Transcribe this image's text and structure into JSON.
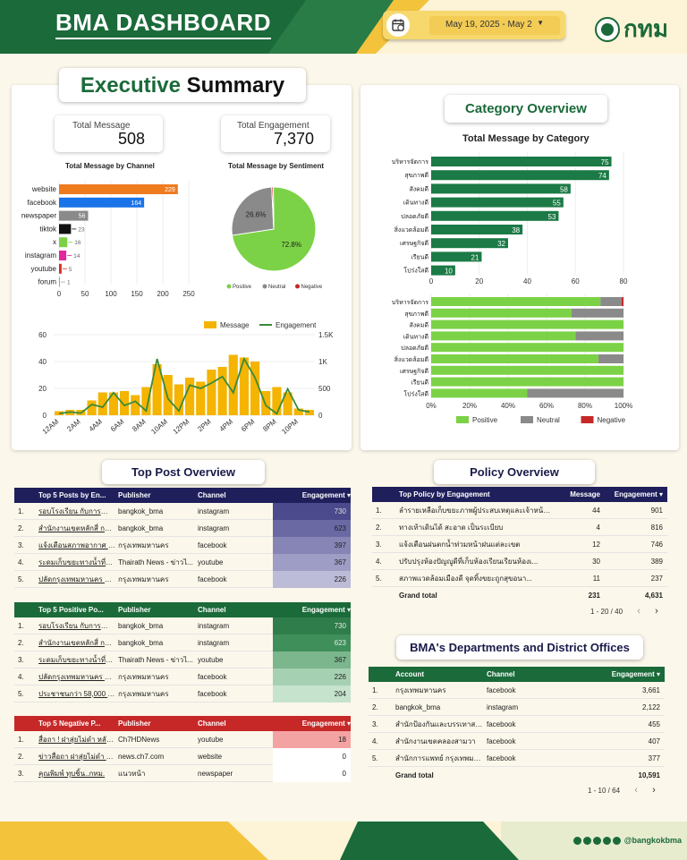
{
  "header": {
    "title": "BMA DASHBOARD",
    "date_range": "May 19, 2025 - May 2",
    "logo_text": "กทม"
  },
  "executive": {
    "title_part1": "Executive",
    "title_part2": "Summary"
  },
  "kpis": {
    "total_message_label": "Total Message",
    "total_message_value": "508",
    "total_engagement_label": "Total Engagement",
    "total_engagement_value": "7,370"
  },
  "channel_chart": {
    "title": "Total Message by Channel"
  },
  "sentiment_chart": {
    "title": "Total Message by Sentiment"
  },
  "category": {
    "title": "Category Overview",
    "subtitle": "Total Message by Category"
  },
  "chart_data": [
    {
      "type": "bar",
      "title": "Total Message by Channel",
      "categories": [
        "website",
        "facebook",
        "newspaper",
        "tiktok",
        "x",
        "instagram",
        "youtube",
        "forum"
      ],
      "values": [
        229,
        164,
        56,
        23,
        16,
        14,
        5,
        1
      ],
      "colors": [
        "#ef7b1f",
        "#1a73e8",
        "#8a8a8a",
        "#111111",
        "#7cd246",
        "#e2269f",
        "#d93025",
        "#9aa0c8"
      ],
      "xticks": [
        "0",
        "50",
        "100",
        "150",
        "200",
        "250"
      ],
      "xlim": [
        0,
        250
      ]
    },
    {
      "type": "pie",
      "title": "Total Message by Sentiment",
      "labels": [
        "Positive",
        "Neutral",
        "Negative"
      ],
      "values": [
        72.8,
        26.6,
        0.6
      ],
      "colors": [
        "#7cd246",
        "#8a8a8a",
        "#c62828"
      ],
      "slice_labels": [
        "72.8%",
        "26.6%",
        ""
      ]
    },
    {
      "type": "bar",
      "title": "Total Message by Category",
      "categories": [
        "บริหารจัดการ",
        "สุขภาพดี",
        "สังคมดี",
        "เดินทางดี",
        "ปลอดภัยดี",
        "สิ่งแวดล้อมดี",
        "เศรษฐกิจดี",
        "เรียนดี",
        "โปร่งใสดี"
      ],
      "values": [
        75,
        74,
        58,
        55,
        53,
        38,
        32,
        21,
        10
      ],
      "xticks": [
        "0",
        "20",
        "40",
        "60",
        "80"
      ],
      "xlim": [
        0,
        80
      ],
      "color": "#1b7a45"
    },
    {
      "type": "bar",
      "stacked": true,
      "categories": [
        "บริหารจัดการ",
        "สุขภาพดี",
        "สังคมดี",
        "เดินทางดี",
        "ปลอดภัยดี",
        "สิ่งแวดล้อมดี",
        "เศรษฐกิจดี",
        "เรียนดี",
        "โปร่งใสดี"
      ],
      "series": [
        {
          "name": "Positive",
          "values": [
            0.88,
            0.73,
            1,
            0.75,
            1,
            0.87,
            1,
            1,
            0.5
          ],
          "color": "#7cd246"
        },
        {
          "name": "Neutral",
          "values": [
            0.11,
            0.27,
            0,
            0.25,
            0,
            0.13,
            0,
            0,
            0.5
          ],
          "color": "#8a8a8a"
        },
        {
          "name": "Negative",
          "values": [
            0.01,
            0,
            0,
            0,
            0,
            0,
            0,
            0,
            0
          ],
          "color": "#c62828"
        }
      ],
      "xticks": [
        "0%",
        "20%",
        "40%",
        "60%",
        "80%",
        "100%"
      ]
    },
    {
      "type": "bar+line",
      "x": [
        "12AM",
        "1AM",
        "2AM",
        "3AM",
        "4AM",
        "5AM",
        "6AM",
        "7AM",
        "8AM",
        "9AM",
        "10AM",
        "11AM",
        "12PM",
        "1PM",
        "2PM",
        "3PM",
        "4PM",
        "5PM",
        "6PM",
        "7PM",
        "8PM",
        "9PM",
        "10PM",
        "11PM"
      ],
      "xticks": [
        "12AM",
        "2AM",
        "4AM",
        "6AM",
        "8AM",
        "10AM",
        "12PM",
        "2PM",
        "4PM",
        "6PM",
        "8PM",
        "10PM"
      ],
      "series": [
        {
          "name": "Message",
          "type": "bar",
          "values": [
            3,
            4,
            4,
            11,
            17,
            17,
            18,
            15,
            21,
            38,
            30,
            23,
            28,
            25,
            34,
            36,
            45,
            43,
            40,
            18,
            21,
            17,
            5,
            4
          ],
          "color": "#f4b400"
        },
        {
          "name": "Engagement",
          "type": "line",
          "values": [
            30,
            60,
            40,
            200,
            150,
            420,
            180,
            260,
            80,
            1050,
            310,
            80,
            560,
            500,
            600,
            720,
            420,
            1050,
            700,
            180,
            30,
            490,
            100,
            60
          ],
          "color": "#3a8a3a"
        }
      ],
      "ylim_left": [
        0,
        60
      ],
      "yticks_left": [
        "0",
        "20",
        "40",
        "60"
      ],
      "ylim_right": [
        0,
        1500
      ],
      "yticks_right": [
        "0",
        "500",
        "1K",
        "1.5K"
      ]
    }
  ],
  "legends": {
    "positive": "Positive",
    "neutral": "Neutral",
    "negative": "Negative",
    "message": "Message",
    "engagement": "Engagement"
  },
  "top_post": {
    "title": "Top Post Overview",
    "top5": {
      "headers": [
        "",
        "Top 5 Posts by En...",
        "Publisher",
        "Channel",
        "Engagement ▾"
      ],
      "rows": [
        [
          "1.",
          "รอบโรงเรียน กับการกำจัดขยะ...",
          "bangkok_bma",
          "instagram",
          "730"
        ],
        [
          "2.",
          "สำนักงานเขตหลักสี่ การกำจัดขยะ...",
          "bangkok_bma",
          "instagram",
          "623"
        ],
        [
          "3.",
          "แจ้งเตือนสภาพอากาศ ..ครั้ง...",
          "กรุงเทพมหานคร",
          "facebook",
          "397"
        ],
        [
          "4.",
          "ระดมเก็บขยะทางน้ำที่คลอง...",
          "Thairath News - ข่าวไ...",
          "youtube",
          "367"
        ],
        [
          "5.",
          "ปลัดกรุงเทพมหานคร ตรว...",
          "กรุงเทพมหานคร",
          "facebook",
          "226"
        ]
      ]
    },
    "positive": {
      "headers": [
        "",
        "Top 5 Positive Po...",
        "Publisher",
        "Channel",
        "Engagement ▾"
      ],
      "rows": [
        [
          "1.",
          "รอบโรงเรียน กับการกำจัดขยะ...",
          "bangkok_bma",
          "instagram",
          "730"
        ],
        [
          "2.",
          "สำนักงานเขตหลักสี่ การกำจัด...",
          "bangkok_bma",
          "instagram",
          "623"
        ],
        [
          "3.",
          "ระดมเก็บขยะทางน้ำที่คลอง...",
          "Thairath News - ข่าวไ...",
          "youtube",
          "367"
        ],
        [
          "4.",
          "ปลัดกรุงเทพมหานคร ตรว...",
          "กรุงเทพมหานคร",
          "facebook",
          "226"
        ],
        [
          "5.",
          "ประชาชนกว่า 58,000 คน...",
          "กรุงเทพมหานคร",
          "facebook",
          "204"
        ]
      ]
    },
    "negative": {
      "headers": [
        "",
        "Top 5 Negative P...",
        "Publisher",
        "Channel",
        "Engagement ▾"
      ],
      "rows": [
        [
          "1.",
          "สื่อถา ! ฝาสุ่ยไม่ดำ หลังเ...",
          "Ch7HDNews",
          "youtube",
          "18"
        ],
        [
          "2.",
          "ข่าวสื่อถา ฝาสุ่ยไม่ดำ หลัง...",
          "news.ch7.com",
          "website",
          "0"
        ],
        [
          "3.",
          "คุณพิมพ์ ทุบชิ้น..กทม.",
          "แนวหน้า",
          "newspaper",
          "0"
        ]
      ]
    }
  },
  "policy": {
    "title": "Policy Overview",
    "headers": [
      "",
      "Top Policy by Engagement",
      "Message",
      "Engagement ▾"
    ],
    "rows": [
      [
        "1.",
        "ลำรายเหลือเก็บขยะภาพผู้ประสบเหตุและเจ้าหน้า...",
        "44",
        "901"
      ],
      [
        "2.",
        "ทางเท้าเดินได้ สะอาด เป็นระเบียบ",
        "4",
        "816"
      ],
      [
        "3.",
        "แจ้งเตือนฝนตกน้ำท่วมหน้าฝนแต่ละเขต",
        "12",
        "746"
      ],
      [
        "4.",
        "ปรับปรุงห้องปัญญูดีที่เก็บห้องเรียนเรียนห้องเ...",
        "30",
        "389"
      ],
      [
        "5.",
        "สภาพแวดล้อมเมืองดี จุดทิ้งขยะถูกสุขอนา...",
        "11",
        "237"
      ]
    ],
    "total": [
      "Grand total",
      "231",
      "4,631"
    ],
    "pagination": "1 - 20 / 40"
  },
  "departments": {
    "title": "BMA's Departments and District Offices",
    "headers": [
      "",
      "Account",
      "Channel",
      "Engagement ▾"
    ],
    "rows": [
      [
        "1.",
        "กรุงเทพมหานคร",
        "facebook",
        "3,661"
      ],
      [
        "2.",
        "bangkok_bma",
        "instagram",
        "2,122"
      ],
      [
        "3.",
        "สำนักป้องกันและบรรเทาสาธารณ...",
        "facebook",
        "455"
      ],
      [
        "4.",
        "สำนักงานเขตคลองสามวา",
        "facebook",
        "407"
      ],
      [
        "5.",
        "สำนักการแพทย์ กรุงเทพมหานคร",
        "facebook",
        "377"
      ]
    ],
    "total": [
      "Grand total",
      "",
      "10,591"
    ],
    "pagination": "1 - 10 / 64"
  },
  "footer": {
    "handle": "@bangkokbma"
  }
}
